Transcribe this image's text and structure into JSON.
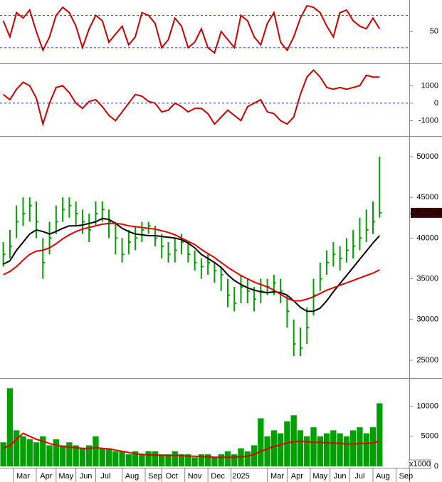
{
  "chart_data": [
    {
      "type": "line",
      "xlim": [
        -0.5,
        61.5
      ],
      "ylim": [
        -8,
        106
      ],
      "yticks": [
        50
      ],
      "hlines": [
        80,
        20
      ],
      "x": [
        0,
        1,
        2,
        3,
        4,
        5,
        6,
        7,
        8,
        9,
        10,
        11,
        12,
        13,
        14,
        15,
        16,
        17,
        18,
        19,
        20,
        21,
        22,
        23,
        24,
        25,
        26,
        27,
        28,
        29,
        30,
        31,
        32,
        33,
        34,
        35,
        36,
        37,
        38,
        39,
        40,
        41,
        42,
        43,
        44,
        45,
        46,
        47,
        48,
        49,
        50,
        51,
        52,
        53,
        54,
        55,
        56,
        57
      ],
      "series": [
        {
          "color": "#cc0000",
          "values": [
            70,
            40,
            85,
            75,
            90,
            50,
            15,
            40,
            80,
            95,
            85,
            60,
            20,
            55,
            80,
            70,
            30,
            45,
            60,
            25,
            40,
            85,
            80,
            65,
            20,
            35,
            75,
            60,
            20,
            30,
            55,
            20,
            10,
            50,
            35,
            20,
            80,
            70,
            40,
            25,
            65,
            85,
            30,
            15,
            40,
            75,
            98,
            95,
            85,
            60,
            40,
            85,
            90,
            70,
            60,
            55,
            75,
            55
          ]
        }
      ]
    },
    {
      "type": "line",
      "xlim": [
        -0.5,
        61.5
      ],
      "ylim": [
        -1840,
        2160
      ],
      "yticks": [
        1000,
        0,
        -1000
      ],
      "hlines": [
        0
      ],
      "x": [
        0,
        1,
        2,
        3,
        4,
        5,
        6,
        7,
        8,
        9,
        10,
        11,
        12,
        13,
        14,
        15,
        16,
        17,
        18,
        19,
        20,
        21,
        22,
        23,
        24,
        25,
        26,
        27,
        28,
        29,
        30,
        31,
        32,
        33,
        34,
        35,
        36,
        37,
        38,
        39,
        40,
        41,
        42,
        43,
        44,
        45,
        46,
        47,
        48,
        49,
        50,
        51,
        52,
        53,
        54,
        55,
        56,
        57
      ],
      "series": [
        {
          "color": "#cc0000",
          "values": [
            500,
            200,
            800,
            1200,
            1000,
            300,
            -1200,
            0,
            900,
            1000,
            600,
            0,
            -300,
            100,
            200,
            -200,
            -700,
            -1000,
            -500,
            0,
            500,
            400,
            100,
            0,
            -500,
            -400,
            0,
            -200,
            -500,
            -300,
            -300,
            -600,
            -1200,
            -800,
            -400,
            -700,
            -1000,
            -200,
            0,
            200,
            -500,
            -600,
            -1000,
            -1200,
            -800,
            500,
            1500,
            1900,
            1500,
            900,
            800,
            900,
            800,
            900,
            1000,
            1600,
            1500,
            1500
          ]
        }
      ]
    },
    {
      "type": "ohlc",
      "xlim": [
        -0.5,
        61.5
      ],
      "ylim": [
        22900,
        52360
      ],
      "yticks": [
        50000,
        45000,
        40000,
        35000,
        30000,
        25000
      ],
      "color": "#00a000",
      "last_label": "43100.00",
      "x": [
        0,
        1,
        2,
        3,
        4,
        5,
        6,
        7,
        8,
        9,
        10,
        11,
        12,
        13,
        14,
        15,
        16,
        17,
        18,
        19,
        20,
        21,
        22,
        23,
        24,
        25,
        26,
        27,
        28,
        29,
        30,
        31,
        32,
        33,
        34,
        35,
        36,
        37,
        38,
        39,
        40,
        41,
        42,
        43,
        44,
        45,
        46,
        47,
        48,
        49,
        50,
        51,
        52,
        53,
        54,
        55,
        56,
        57
      ],
      "high": [
        39500,
        41000,
        44000,
        45000,
        45000,
        44500,
        40000,
        42000,
        44000,
        45000,
        45000,
        44500,
        43500,
        43000,
        44500,
        44500,
        43500,
        42000,
        40000,
        41000,
        41500,
        42000,
        42000,
        41500,
        40500,
        39500,
        40000,
        40500,
        39500,
        38500,
        37500,
        38000,
        37000,
        36500,
        35000,
        34000,
        35500,
        35000,
        34000,
        35000,
        35000,
        35500,
        35000,
        33000,
        30000,
        29000,
        31500,
        35000,
        37000,
        38500,
        39500,
        39000,
        40000,
        41000,
        42500,
        43500,
        44500,
        50000
      ],
      "low": [
        36500,
        37500,
        40000,
        41500,
        42000,
        40000,
        35000,
        38000,
        40500,
        42000,
        42500,
        41500,
        40500,
        39500,
        41500,
        42000,
        40000,
        38000,
        37000,
        38000,
        38500,
        39500,
        40500,
        39000,
        37500,
        37000,
        37000,
        38000,
        37000,
        36000,
        35000,
        35500,
        34500,
        33500,
        31500,
        31000,
        32000,
        32000,
        31000,
        32000,
        33000,
        33000,
        32000,
        29000,
        25500,
        25500,
        27000,
        30500,
        33500,
        35500,
        36500,
        36000,
        37000,
        37500,
        38500,
        39500,
        40500,
        42500
      ],
      "close": [
        38000,
        39000,
        42000,
        43000,
        44000,
        42000,
        37000,
        40000,
        42000,
        43500,
        44000,
        43000,
        42000,
        41000,
        43000,
        43500,
        42000,
        40000,
        38000,
        39500,
        40000,
        41000,
        41500,
        40000,
        39000,
        38000,
        38500,
        39500,
        38000,
        37000,
        36500,
        37000,
        36000,
        35500,
        33000,
        32000,
        34000,
        33500,
        32500,
        33500,
        34000,
        34500,
        33500,
        31000,
        27000,
        26500,
        29000,
        33000,
        35000,
        37000,
        38000,
        37500,
        38500,
        39000,
        40000,
        41000,
        42000,
        43100
      ],
      "series": [
        {
          "color": "#000000",
          "values": [
            36800,
            37200,
            38500,
            39500,
            40500,
            41000,
            40800,
            40500,
            40800,
            41200,
            41500,
            41500,
            41600,
            41800,
            42000,
            42400,
            42300,
            41800,
            41200,
            40800,
            40500,
            40400,
            40300,
            40300,
            40200,
            40100,
            40000,
            39800,
            39400,
            38800,
            38000,
            37500,
            37000,
            36400,
            35500,
            34800,
            34300,
            33900,
            33600,
            33400,
            33300,
            33400,
            33300,
            33000,
            32300,
            31500,
            31000,
            31000,
            31400,
            32300,
            33400,
            34400,
            35400,
            36400,
            37400,
            38400,
            39400,
            40300
          ]
        },
        {
          "color": "#e00000",
          "values": [
            35500,
            35900,
            36500,
            37300,
            38000,
            38400,
            38500,
            38800,
            39300,
            39900,
            40400,
            40800,
            41100,
            41300,
            41500,
            41700,
            41800,
            41800,
            41700,
            41500,
            41400,
            41300,
            41200,
            41100,
            40900,
            40700,
            40400,
            40000,
            39600,
            39200,
            38600,
            38100,
            37600,
            37000,
            36400,
            35900,
            35400,
            35000,
            34600,
            34300,
            34000,
            33600,
            33100,
            32600,
            32300,
            32300,
            32500,
            32800,
            33200,
            33600,
            33900,
            34200,
            34500,
            34800,
            35100,
            35400,
            35700,
            36100
          ]
        }
      ]
    },
    {
      "type": "bar",
      "xlim": [
        -0.5,
        61.5
      ],
      "ylim": [
        0,
        14460
      ],
      "yticks": [
        10000,
        5000,
        0
      ],
      "color": "#00a000",
      "unit_label": "x1000",
      "x": [
        0,
        1,
        2,
        3,
        4,
        5,
        6,
        7,
        8,
        9,
        10,
        11,
        12,
        13,
        14,
        15,
        16,
        17,
        18,
        19,
        20,
        21,
        22,
        23,
        24,
        25,
        26,
        27,
        28,
        29,
        30,
        31,
        32,
        33,
        34,
        35,
        36,
        37,
        38,
        39,
        40,
        41,
        42,
        43,
        44,
        45,
        46,
        47,
        48,
        49,
        50,
        51,
        52,
        53,
        54,
        55,
        56,
        57
      ],
      "values": [
        4000,
        13000,
        6000,
        5000,
        4500,
        4000,
        5000,
        3500,
        4500,
        3500,
        4000,
        3500,
        3000,
        3500,
        5000,
        3000,
        3000,
        2500,
        2500,
        2000,
        2500,
        2000,
        2500,
        2500,
        2000,
        2000,
        2500,
        2000,
        2000,
        1500,
        2000,
        2000,
        1500,
        2000,
        2500,
        2000,
        3000,
        2500,
        3500,
        8000,
        5000,
        6000,
        5500,
        7500,
        8500,
        6000,
        5000,
        6500,
        5000,
        5500,
        6000,
        5500,
        5000,
        6000,
        6500,
        5500,
        6500,
        10500
      ],
      "series": [
        {
          "color": "#e00000",
          "values": [
            3000,
            3500,
            4500,
            5500,
            5000,
            4500,
            4200,
            3800,
            3500,
            3300,
            3200,
            3100,
            3000,
            3000,
            3100,
            3000,
            2900,
            2700,
            2500,
            2300,
            2100,
            2000,
            1900,
            1900,
            1800,
            1800,
            1800,
            1800,
            1700,
            1700,
            1600,
            1600,
            1500,
            1500,
            1500,
            1500,
            1600,
            1700,
            2000,
            2500,
            2900,
            3300,
            3600,
            3900,
            4100,
            4200,
            4100,
            4000,
            4000,
            3900,
            3900,
            3800,
            3700,
            3700,
            3800,
            3800,
            3900,
            4200
          ]
        }
      ],
      "xticks": [
        {
          "value": 3,
          "label": "Mar"
        },
        {
          "value": 6.5,
          "label": "Apr"
        },
        {
          "value": 9.5,
          "label": "May"
        },
        {
          "value": 12.5,
          "label": "Jun"
        },
        {
          "value": 15.5,
          "label": "Jul"
        },
        {
          "value": 19.5,
          "label": "Aug"
        },
        {
          "value": 23,
          "label": "Sep"
        },
        {
          "value": 25.5,
          "label": "Oct"
        },
        {
          "value": 29,
          "label": "Nov"
        },
        {
          "value": 32.5,
          "label": "Dec"
        },
        {
          "value": 36,
          "label": "2025"
        },
        {
          "value": 41.5,
          "label": "Mar"
        },
        {
          "value": 44.5,
          "label": "Apr"
        },
        {
          "value": 48,
          "label": "May"
        },
        {
          "value": 51,
          "label": "Jun"
        },
        {
          "value": 54,
          "label": "Jul"
        },
        {
          "value": 57.5,
          "label": "Aug"
        },
        {
          "value": 61,
          "label": "Sep"
        }
      ]
    }
  ]
}
